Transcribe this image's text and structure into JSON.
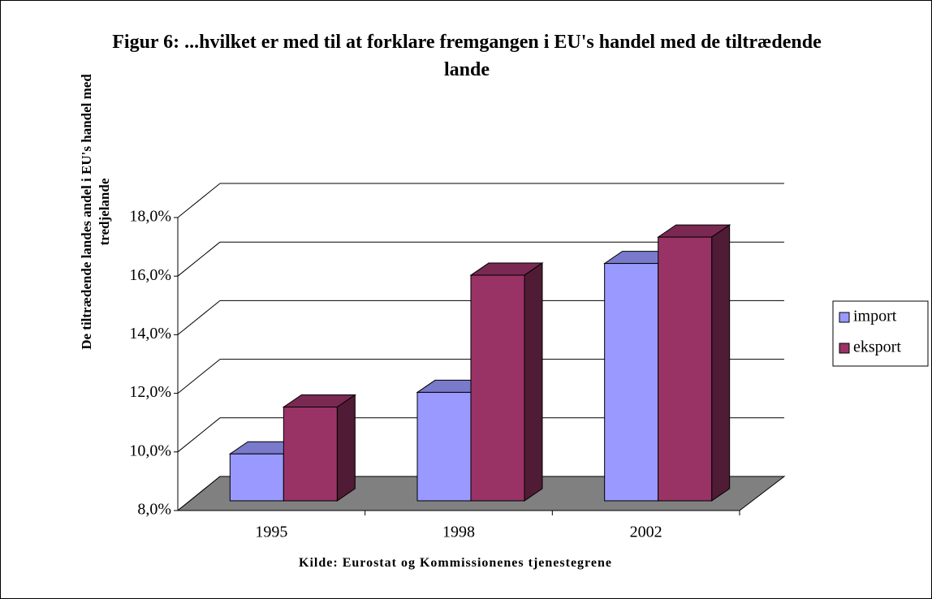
{
  "chart_data": {
    "type": "bar3d",
    "title": "Figur 6: ...hvilket er med til at forklare fremgangen i EU's handel med de tiltrædende lande",
    "ylabel": "De tiltrædende landes andel i EU's handel med tredjelande",
    "xlabel": "Kilde: Eurostat og Kommissionenes tjenestegrene",
    "categories": [
      "1995",
      "1998",
      "2002"
    ],
    "series": [
      {
        "name": "import",
        "color": "#9999ff",
        "values": [
          9.6,
          11.7,
          16.1
        ]
      },
      {
        "name": "eksport",
        "color": "#993366",
        "values": [
          11.2,
          15.7,
          17.0
        ]
      }
    ],
    "ylim": [
      8,
      18
    ],
    "yticks": [
      {
        "value": 8,
        "label": "8,0%"
      },
      {
        "value": 10,
        "label": "10,0%"
      },
      {
        "value": 12,
        "label": "12,0%"
      },
      {
        "value": 14,
        "label": "14,0%"
      },
      {
        "value": 16,
        "label": "16,0%"
      },
      {
        "value": 18,
        "label": "18,0%"
      }
    ],
    "grid": true,
    "legend": "right",
    "floor_color": "#808080"
  }
}
